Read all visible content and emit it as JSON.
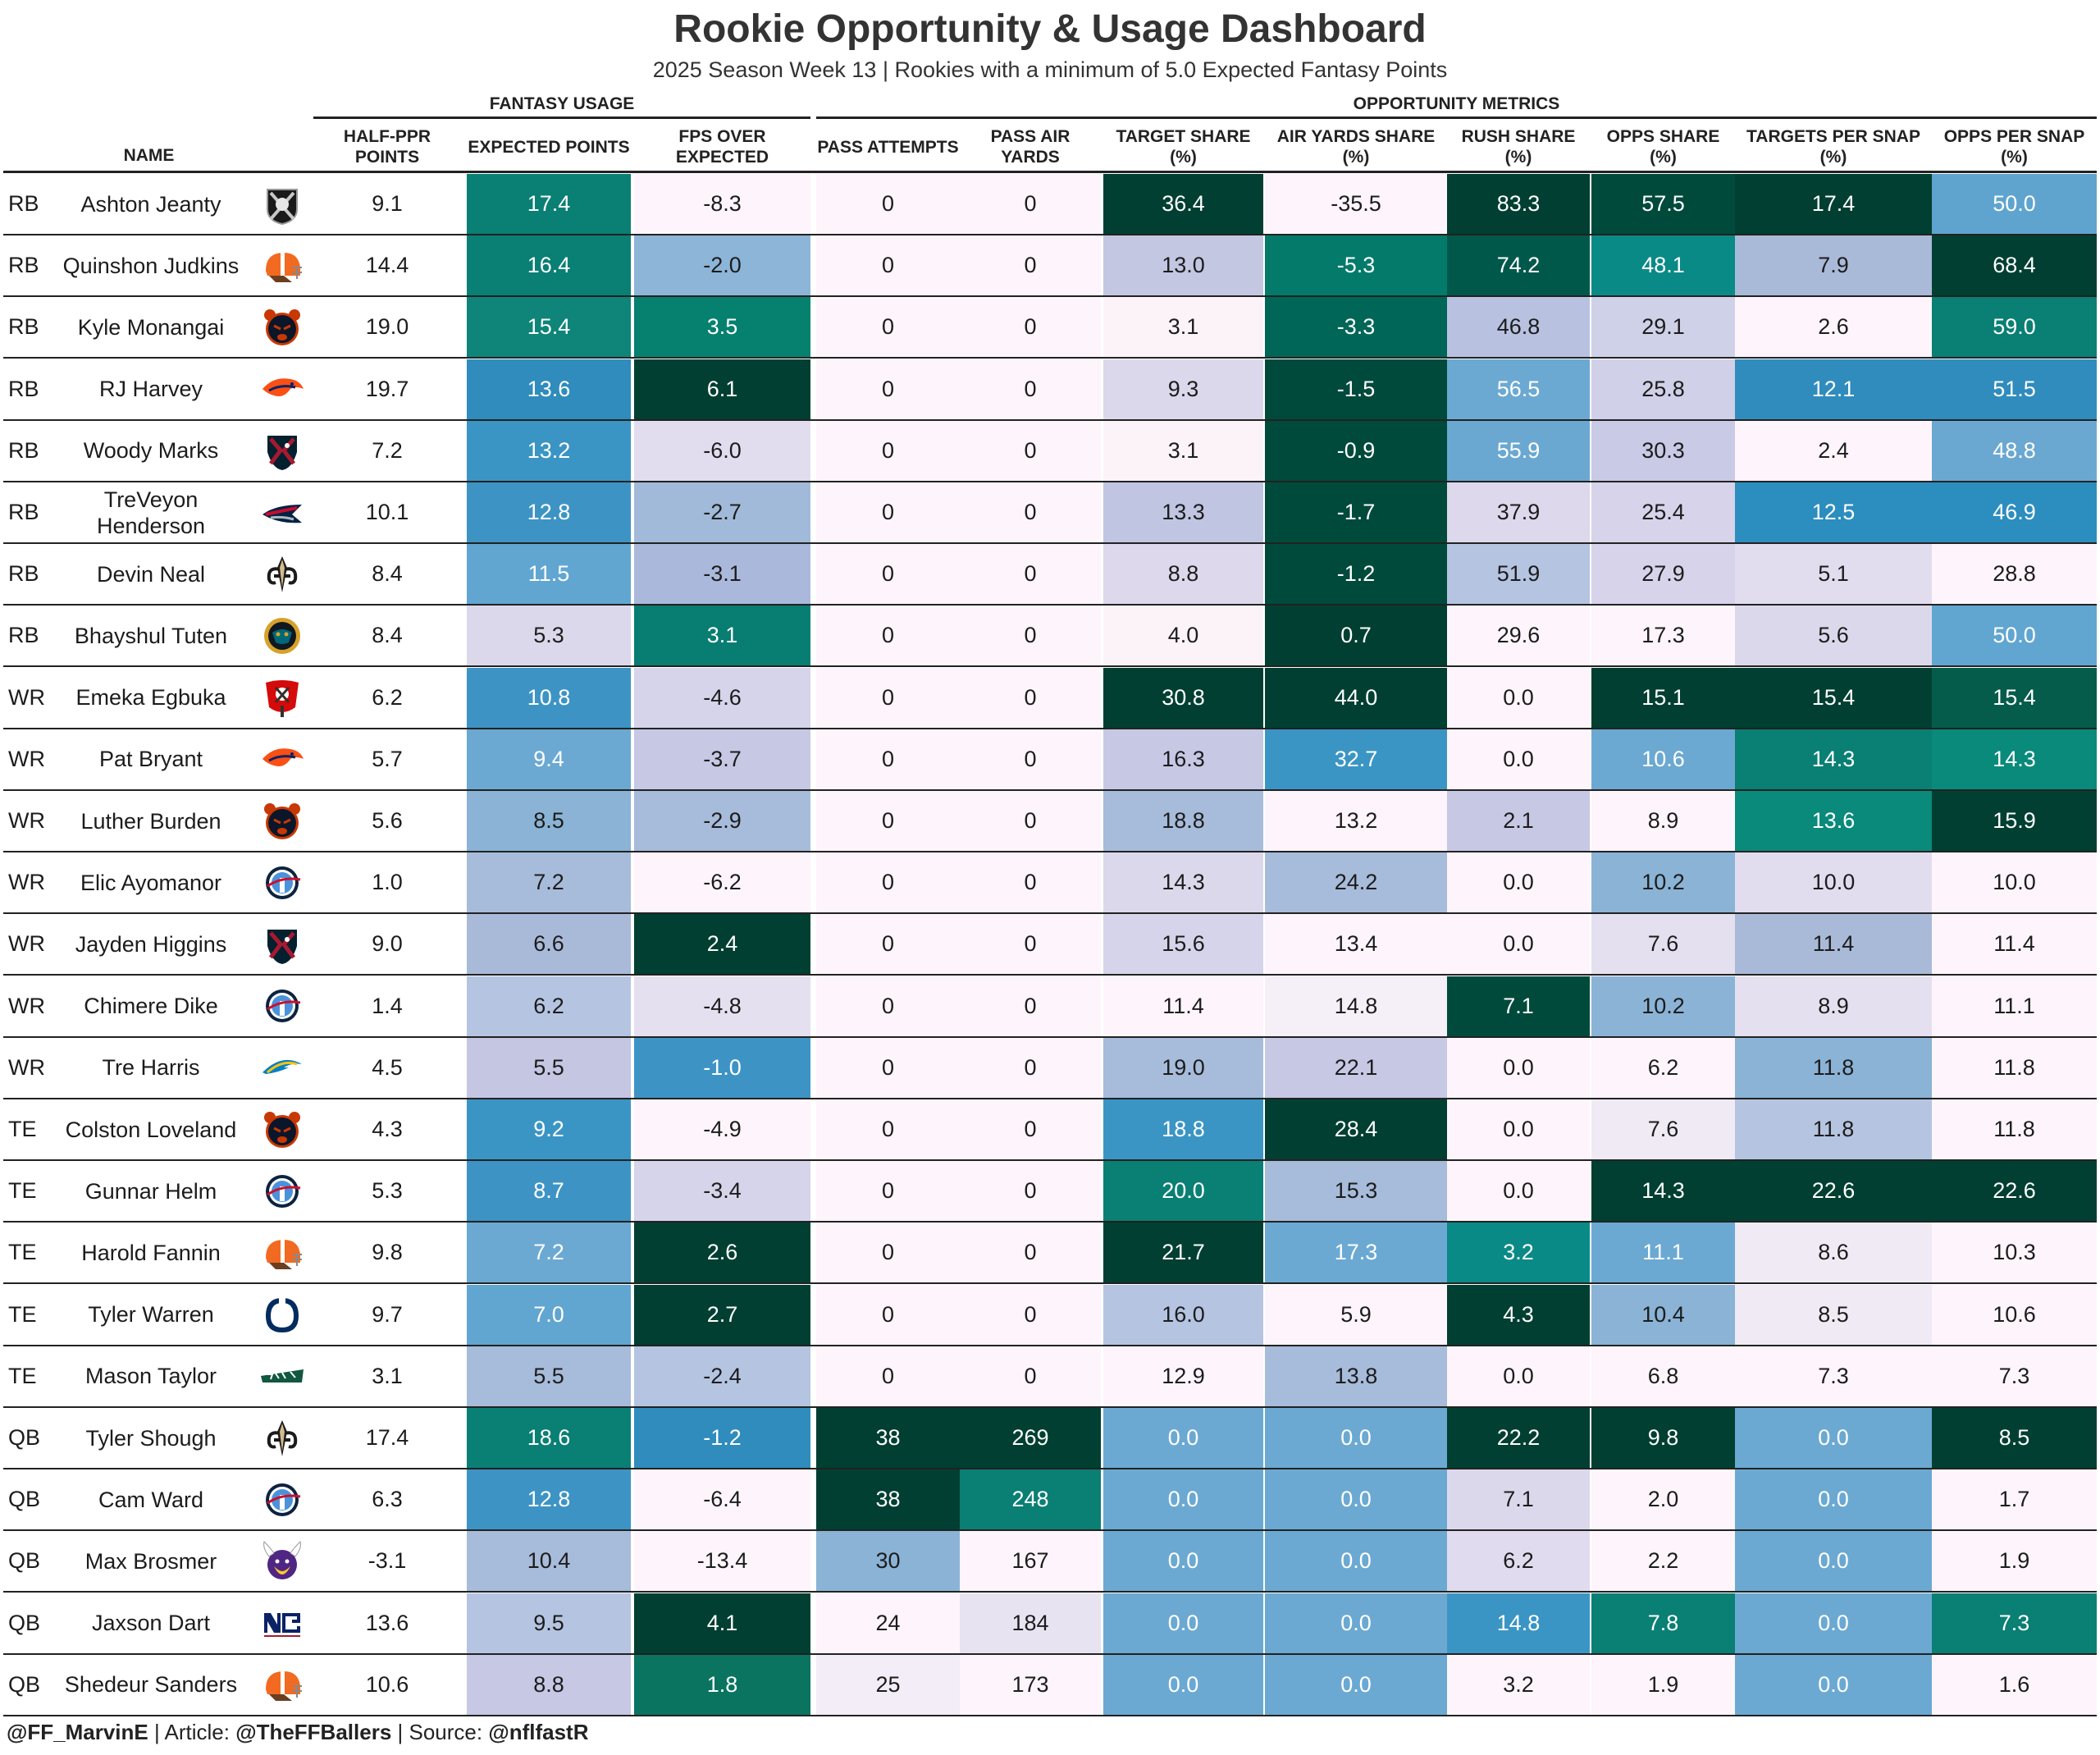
{
  "title": "Rookie Opportunity & Usage Dashboard",
  "subtitle": "2025 Season Week 13 | Rookies with a minimum of 5.0 Expected Fantasy Points",
  "groups": {
    "fantasy": "FANTASY USAGE",
    "opportunity": "OPPORTUNITY METRICS"
  },
  "columns": [
    {
      "key": "name",
      "label": "NAME"
    },
    {
      "key": "half_ppr",
      "label": "HALF-PPR POINTS"
    },
    {
      "key": "expected",
      "label": "EXPECTED POINTS"
    },
    {
      "key": "fps_over",
      "label": "FPS OVER EXPECTED"
    },
    {
      "key": "pass_att",
      "label": "PASS ATTEMPTS"
    },
    {
      "key": "pass_air",
      "label": "PASS AIR YARDS"
    },
    {
      "key": "target_share",
      "label": "TARGET SHARE (%)"
    },
    {
      "key": "air_share",
      "label": "AIR YARDS SHARE (%)"
    },
    {
      "key": "rush_share",
      "label": "RUSH SHARE (%)"
    },
    {
      "key": "opps_share",
      "label": "OPPS SHARE (%)"
    },
    {
      "key": "tgt_snap",
      "label": "TARGETS PER SNAP (%)"
    },
    {
      "key": "opps_snap",
      "label": "OPPS PER SNAP (%)"
    }
  ],
  "footer": {
    "handle": "@FF_MarvinE",
    "article_label": "Article:",
    "article": "@TheFFBallers",
    "source_label": "Source:",
    "source": "@nflfastR"
  },
  "chart_data": {
    "type": "table",
    "rows": [
      {
        "pos": "RB",
        "name": "Ashton Jeanty",
        "team": "raiders",
        "half_ppr": "9.1",
        "expected": "17.4",
        "fps_over": "-8.3",
        "pass_att": "0",
        "pass_air": "0",
        "target_share": "36.4",
        "air_share": "-35.5",
        "rush_share": "83.3",
        "opps_share": "57.5",
        "tgt_snap": "17.4",
        "opps_snap": "50.0"
      },
      {
        "pos": "RB",
        "name": "Quinshon Judkins",
        "team": "browns",
        "half_ppr": "14.4",
        "expected": "16.4",
        "fps_over": "-2.0",
        "pass_att": "0",
        "pass_air": "0",
        "target_share": "13.0",
        "air_share": "-5.3",
        "rush_share": "74.2",
        "opps_share": "48.1",
        "tgt_snap": "7.9",
        "opps_snap": "68.4"
      },
      {
        "pos": "RB",
        "name": "Kyle Monangai",
        "team": "bears",
        "half_ppr": "19.0",
        "expected": "15.4",
        "fps_over": "3.5",
        "pass_att": "0",
        "pass_air": "0",
        "target_share": "3.1",
        "air_share": "-3.3",
        "rush_share": "46.8",
        "opps_share": "29.1",
        "tgt_snap": "2.6",
        "opps_snap": "59.0"
      },
      {
        "pos": "RB",
        "name": "RJ Harvey",
        "team": "broncos",
        "half_ppr": "19.7",
        "expected": "13.6",
        "fps_over": "6.1",
        "pass_att": "0",
        "pass_air": "0",
        "target_share": "9.3",
        "air_share": "-1.5",
        "rush_share": "56.5",
        "opps_share": "25.8",
        "tgt_snap": "12.1",
        "opps_snap": "51.5"
      },
      {
        "pos": "RB",
        "name": "Woody Marks",
        "team": "texans",
        "half_ppr": "7.2",
        "expected": "13.2",
        "fps_over": "-6.0",
        "pass_att": "0",
        "pass_air": "0",
        "target_share": "3.1",
        "air_share": "-0.9",
        "rush_share": "55.9",
        "opps_share": "30.3",
        "tgt_snap": "2.4",
        "opps_snap": "48.8"
      },
      {
        "pos": "RB",
        "name": "TreVeyon Henderson",
        "team": "patriots",
        "half_ppr": "10.1",
        "expected": "12.8",
        "fps_over": "-2.7",
        "pass_att": "0",
        "pass_air": "0",
        "target_share": "13.3",
        "air_share": "-1.7",
        "rush_share": "37.9",
        "opps_share": "25.4",
        "tgt_snap": "12.5",
        "opps_snap": "46.9"
      },
      {
        "pos": "RB",
        "name": "Devin Neal",
        "team": "saints",
        "half_ppr": "8.4",
        "expected": "11.5",
        "fps_over": "-3.1",
        "pass_att": "0",
        "pass_air": "0",
        "target_share": "8.8",
        "air_share": "-1.2",
        "rush_share": "51.9",
        "opps_share": "27.9",
        "tgt_snap": "5.1",
        "opps_snap": "28.8"
      },
      {
        "pos": "RB",
        "name": "Bhayshul Tuten",
        "team": "jaguars",
        "half_ppr": "8.4",
        "expected": "5.3",
        "fps_over": "3.1",
        "pass_att": "0",
        "pass_air": "0",
        "target_share": "4.0",
        "air_share": "0.7",
        "rush_share": "29.6",
        "opps_share": "17.3",
        "tgt_snap": "5.6",
        "opps_snap": "50.0"
      },
      {
        "pos": "WR",
        "name": "Emeka Egbuka",
        "team": "buccaneers",
        "half_ppr": "6.2",
        "expected": "10.8",
        "fps_over": "-4.6",
        "pass_att": "0",
        "pass_air": "0",
        "target_share": "30.8",
        "air_share": "44.0",
        "rush_share": "0.0",
        "opps_share": "15.1",
        "tgt_snap": "15.4",
        "opps_snap": "15.4"
      },
      {
        "pos": "WR",
        "name": "Pat Bryant",
        "team": "broncos",
        "half_ppr": "5.7",
        "expected": "9.4",
        "fps_over": "-3.7",
        "pass_att": "0",
        "pass_air": "0",
        "target_share": "16.3",
        "air_share": "32.7",
        "rush_share": "0.0",
        "opps_share": "10.6",
        "tgt_snap": "14.3",
        "opps_snap": "14.3"
      },
      {
        "pos": "WR",
        "name": "Luther Burden",
        "team": "bears",
        "half_ppr": "5.6",
        "expected": "8.5",
        "fps_over": "-2.9",
        "pass_att": "0",
        "pass_air": "0",
        "target_share": "18.8",
        "air_share": "13.2",
        "rush_share": "2.1",
        "opps_share": "8.9",
        "tgt_snap": "13.6",
        "opps_snap": "15.9"
      },
      {
        "pos": "WR",
        "name": "Elic Ayomanor",
        "team": "titans",
        "half_ppr": "1.0",
        "expected": "7.2",
        "fps_over": "-6.2",
        "pass_att": "0",
        "pass_air": "0",
        "target_share": "14.3",
        "air_share": "24.2",
        "rush_share": "0.0",
        "opps_share": "10.2",
        "tgt_snap": "10.0",
        "opps_snap": "10.0"
      },
      {
        "pos": "WR",
        "name": "Jayden Higgins",
        "team": "texans",
        "half_ppr": "9.0",
        "expected": "6.6",
        "fps_over": "2.4",
        "pass_att": "0",
        "pass_air": "0",
        "target_share": "15.6",
        "air_share": "13.4",
        "rush_share": "0.0",
        "opps_share": "7.6",
        "tgt_snap": "11.4",
        "opps_snap": "11.4"
      },
      {
        "pos": "WR",
        "name": "Chimere Dike",
        "team": "titans",
        "half_ppr": "1.4",
        "expected": "6.2",
        "fps_over": "-4.8",
        "pass_att": "0",
        "pass_air": "0",
        "target_share": "11.4",
        "air_share": "14.8",
        "rush_share": "7.1",
        "opps_share": "10.2",
        "tgt_snap": "8.9",
        "opps_snap": "11.1"
      },
      {
        "pos": "WR",
        "name": "Tre Harris",
        "team": "chargers",
        "half_ppr": "4.5",
        "expected": "5.5",
        "fps_over": "-1.0",
        "pass_att": "0",
        "pass_air": "0",
        "target_share": "19.0",
        "air_share": "22.1",
        "rush_share": "0.0",
        "opps_share": "6.2",
        "tgt_snap": "11.8",
        "opps_snap": "11.8"
      },
      {
        "pos": "TE",
        "name": "Colston Loveland",
        "team": "bears",
        "half_ppr": "4.3",
        "expected": "9.2",
        "fps_over": "-4.9",
        "pass_att": "0",
        "pass_air": "0",
        "target_share": "18.8",
        "air_share": "28.4",
        "rush_share": "0.0",
        "opps_share": "7.6",
        "tgt_snap": "11.8",
        "opps_snap": "11.8"
      },
      {
        "pos": "TE",
        "name": "Gunnar Helm",
        "team": "titans",
        "half_ppr": "5.3",
        "expected": "8.7",
        "fps_over": "-3.4",
        "pass_att": "0",
        "pass_air": "0",
        "target_share": "20.0",
        "air_share": "15.3",
        "rush_share": "0.0",
        "opps_share": "14.3",
        "tgt_snap": "22.6",
        "opps_snap": "22.6"
      },
      {
        "pos": "TE",
        "name": "Harold Fannin",
        "team": "browns",
        "half_ppr": "9.8",
        "expected": "7.2",
        "fps_over": "2.6",
        "pass_att": "0",
        "pass_air": "0",
        "target_share": "21.7",
        "air_share": "17.3",
        "rush_share": "3.2",
        "opps_share": "11.1",
        "tgt_snap": "8.6",
        "opps_snap": "10.3"
      },
      {
        "pos": "TE",
        "name": "Tyler Warren",
        "team": "colts",
        "half_ppr": "9.7",
        "expected": "7.0",
        "fps_over": "2.7",
        "pass_att": "0",
        "pass_air": "0",
        "target_share": "16.0",
        "air_share": "5.9",
        "rush_share": "4.3",
        "opps_share": "10.4",
        "tgt_snap": "8.5",
        "opps_snap": "10.6"
      },
      {
        "pos": "TE",
        "name": "Mason Taylor",
        "team": "jets",
        "half_ppr": "3.1",
        "expected": "5.5",
        "fps_over": "-2.4",
        "pass_att": "0",
        "pass_air": "0",
        "target_share": "12.9",
        "air_share": "13.8",
        "rush_share": "0.0",
        "opps_share": "6.8",
        "tgt_snap": "7.3",
        "opps_snap": "7.3"
      },
      {
        "pos": "QB",
        "name": "Tyler Shough",
        "team": "saints",
        "half_ppr": "17.4",
        "expected": "18.6",
        "fps_over": "-1.2",
        "pass_att": "38",
        "pass_air": "269",
        "target_share": "0.0",
        "air_share": "0.0",
        "rush_share": "22.2",
        "opps_share": "9.8",
        "tgt_snap": "0.0",
        "opps_snap": "8.5"
      },
      {
        "pos": "QB",
        "name": "Cam Ward",
        "team": "titans",
        "half_ppr": "6.3",
        "expected": "12.8",
        "fps_over": "-6.4",
        "pass_att": "38",
        "pass_air": "248",
        "target_share": "0.0",
        "air_share": "0.0",
        "rush_share": "7.1",
        "opps_share": "2.0",
        "tgt_snap": "0.0",
        "opps_snap": "1.7"
      },
      {
        "pos": "QB",
        "name": "Max Brosmer",
        "team": "vikings",
        "half_ppr": "-3.1",
        "expected": "10.4",
        "fps_over": "-13.4",
        "pass_att": "30",
        "pass_air": "167",
        "target_share": "0.0",
        "air_share": "0.0",
        "rush_share": "6.2",
        "opps_share": "2.2",
        "tgt_snap": "0.0",
        "opps_snap": "1.9"
      },
      {
        "pos": "QB",
        "name": "Jaxson Dart",
        "team": "giants",
        "half_ppr": "13.6",
        "expected": "9.5",
        "fps_over": "4.1",
        "pass_att": "24",
        "pass_air": "184",
        "target_share": "0.0",
        "air_share": "0.0",
        "rush_share": "14.8",
        "opps_share": "7.8",
        "tgt_snap": "0.0",
        "opps_snap": "7.3"
      },
      {
        "pos": "QB",
        "name": "Shedeur Sanders",
        "team": "browns",
        "half_ppr": "10.6",
        "expected": "8.8",
        "fps_over": "1.8",
        "pass_att": "25",
        "pass_air": "173",
        "target_share": "0.0",
        "air_share": "0.0",
        "rush_share": "3.2",
        "opps_share": "1.9",
        "tgt_snap": "0.0",
        "opps_snap": "1.6"
      }
    ],
    "cell_colors": [
      [
        "#0a7f74",
        "#fdf5fb",
        "#fdf5fb",
        "#fdf5fb",
        "#003f31",
        "#fdf5fb",
        "#003f31",
        "#004a3c",
        "#5fa4ce"
      ],
      [
        "#0a7f74",
        "#8cb5d8",
        "#fdf5fb",
        "#fdf5fb",
        "#c3c7e2",
        "#047a6b",
        "#00584b",
        "#0a8a86",
        "#003f31"
      ],
      [
        "#0e8578",
        "#06806f",
        "#fdf5fb",
        "#fdf5fb",
        "#fcf3f9",
        "#006657",
        "#b8c2e0",
        "#cfd1e8",
        "#0a7f74"
      ],
      [
        "#2f8cbd",
        "#003f31",
        "#fdf5fb",
        "#fdf5fb",
        "#dcd8ec",
        "#004a3c",
        "#6ba9d2",
        "#d0d0e8",
        "#2f8cbd"
      ],
      [
        "#3b95c4",
        "#e2dcef",
        "#fdf5fb",
        "#fdf5fb",
        "#fcf3f9",
        "#004a3c",
        "#6aa8d1",
        "#c9cae6",
        "#6aa8d1"
      ],
      [
        "#3d94c4",
        "#a2bad9",
        "#fdf5fb",
        "#fdf5fb",
        "#c0c5e2",
        "#004a3c",
        "#ddd8ec",
        "#d6d3ea",
        "#2c8dbf"
      ],
      [
        "#61a6d1",
        "#aab9db",
        "#fdf5fb",
        "#fdf5fb",
        "#ddd8ec",
        "#004a3c",
        "#b5c4e1",
        "#d6d3ea",
        "#fdf5fb"
      ],
      [
        "#dcd8ec",
        "#087d72",
        "#fdf5fb",
        "#fdf5fb",
        "#fcf3f9",
        "#003f31",
        "#fdf5fb",
        "#fdf5fb",
        "#61a6d1"
      ],
      [
        "#3d94c4",
        "#d6d4ea",
        "#fdf5fb",
        "#fdf5fb",
        "#003f31",
        "#003f31",
        "#fdf5fb",
        "#003f31",
        "#055c4a"
      ],
      [
        "#6ba9d2",
        "#c6c8e4",
        "#fdf5fb",
        "#fdf5fb",
        "#c6c8e4",
        "#3b95c4",
        "#fdf5fb",
        "#6ba9d2",
        "#0a8a7b"
      ],
      [
        "#8ab3d6",
        "#a7bbda",
        "#fdf5fb",
        "#fdf5fb",
        "#a7bbda",
        "#fdf5fb",
        "#c6c8e4",
        "#fdf5fb",
        "#003f31"
      ],
      [
        "#a7bbda",
        "#fdf5fb",
        "#fdf5fb",
        "#fdf5fb",
        "#dcd8ec",
        "#a7bbda",
        "#fdf5fb",
        "#8ab3d6",
        "#fdf5fb"
      ],
      [
        "#a9bad9",
        "#003f31",
        "#fdf5fb",
        "#fdf5fb",
        "#d6d4ea",
        "#fdf5fb",
        "#fdf5fb",
        "#e5e0f0",
        "#fdf5fb"
      ],
      [
        "#b5c4e1",
        "#e5e0f0",
        "#fdf5fb",
        "#fdf5fb",
        "#fdf5fb",
        "#f5eff8",
        "#004a3c",
        "#8ab3d6",
        "#fdf5fb"
      ],
      [
        "#c4c6e2",
        "#3d94c4",
        "#fdf5fb",
        "#fdf5fb",
        "#a7bbda",
        "#c6c8e4",
        "#fdf5fb",
        "#fdf5fb",
        "#fdf5fb"
      ],
      [
        "#3b95c4",
        "#fdf5fb",
        "#fdf5fb",
        "#fdf5fb",
        "#3b95c4",
        "#003f31",
        "#fdf5fb",
        "#f0eaf5",
        "#fdf5fb"
      ],
      [
        "#3d94c4",
        "#d6d4ea",
        "#fdf5fb",
        "#fdf5fb",
        "#0a7f74",
        "#a7bbda",
        "#fdf5fb",
        "#003f31",
        "#003f31"
      ],
      [
        "#6ba9d2",
        "#003f31",
        "#fdf5fb",
        "#fdf5fb",
        "#003f31",
        "#6ba9d2",
        "#0a8a86",
        "#6ba9d2",
        "#fdf5fb"
      ],
      [
        "#61a6d1",
        "#003f31",
        "#fdf5fb",
        "#fdf5fb",
        "#b5c4e1",
        "#fdf5fb",
        "#003f31",
        "#8ab3d6",
        "#fdf5fb"
      ],
      [
        "#a7bbda",
        "#b5c4e1",
        "#fdf5fb",
        "#fdf5fb",
        "#fdf5fb",
        "#a7bbda",
        "#fdf5fb",
        "#fdf5fb",
        "#fdf5fb"
      ],
      [
        "#0a7f74",
        "#2f8cbd",
        "#003f31",
        "#003f31",
        "#6ba9d2",
        "#6ba9d2",
        "#003f31",
        "#003f31",
        "#003f31"
      ],
      [
        "#3d94c4",
        "#fdf5fb",
        "#003f31",
        "#0a7f74",
        "#6ba9d2",
        "#6ba9d2",
        "#dcd8ec",
        "#fdf5fb",
        "#fdf5fb"
      ],
      [
        "#a7bbda",
        "#fdf5fb",
        "#8ab3d6",
        "#fdf5fb",
        "#6ba9d2",
        "#6ba9d2",
        "#e0dbee",
        "#fdf5fb",
        "#fdf5fb"
      ],
      [
        "#b5c4e1",
        "#003f31",
        "#fdf5fb",
        "#e8e3f1",
        "#6ba9d2",
        "#6ba9d2",
        "#3b95c4",
        "#0a7f74",
        "#0a7f74"
      ],
      [
        "#c6c8e4",
        "#0a7461",
        "#f2edf6",
        "#fdf5fb",
        "#6ba9d2",
        "#6ba9d2",
        "#fdf5fb",
        "#fdf5fb",
        "#fdf5fb"
      ]
    ]
  }
}
